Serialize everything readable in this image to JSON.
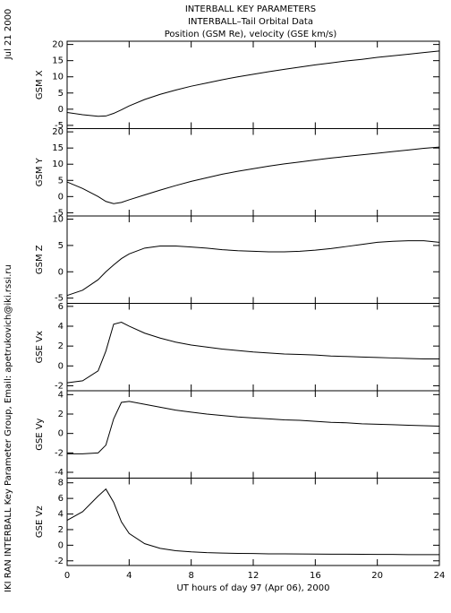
{
  "header": {
    "lines": [
      "INTERBALL KEY PARAMETERS",
      "INTERBALL–Tail Orbital Data",
      "Position (GSM Re), velocity (GSE km/s)"
    ]
  },
  "date_stamp": "Jul 21 2000",
  "credit": "IKI RAN INTERBALL Key Parameter Group, Email: apetrukovich@iki.rssi.ru",
  "chart_data": [
    {
      "type": "line",
      "ylabel": "GSM X",
      "xlim": [
        0,
        24
      ],
      "xticks": [
        0,
        4,
        8,
        12,
        16,
        20,
        24
      ],
      "xtick_labels": false,
      "ylim": [
        -6,
        21
      ],
      "yticks": [
        -5,
        0,
        5,
        10,
        15,
        20
      ],
      "x": [
        0,
        1,
        2,
        2.5,
        3,
        3.5,
        4,
        5,
        6,
        7,
        8,
        9,
        10,
        11,
        12,
        13,
        14,
        15,
        16,
        17,
        18,
        19,
        20,
        21,
        22,
        23,
        24
      ],
      "values": [
        -1,
        -1.7,
        -2.2,
        -2.1,
        -1.3,
        -0.2,
        1.0,
        3,
        4.6,
        5.9,
        7.1,
        8.1,
        9.1,
        10,
        10.8,
        11.6,
        12.3,
        13,
        13.7,
        14.3,
        14.9,
        15.4,
        16,
        16.5,
        17,
        17.5,
        18
      ]
    },
    {
      "type": "line",
      "ylabel": "GSM Y",
      "xlim": [
        0,
        24
      ],
      "xticks": [
        0,
        4,
        8,
        12,
        16,
        20,
        24
      ],
      "xtick_labels": false,
      "ylim": [
        -6,
        21
      ],
      "yticks": [
        -5,
        0,
        5,
        10,
        15,
        20
      ],
      "x": [
        0,
        1,
        2,
        2.5,
        3,
        3.5,
        4,
        5,
        6,
        7,
        8,
        9,
        10,
        11,
        12,
        13,
        14,
        15,
        16,
        17,
        18,
        19,
        20,
        21,
        22,
        23,
        24
      ],
      "values": [
        4.5,
        2.5,
        0,
        -1.5,
        -2.2,
        -1.8,
        -1,
        0.5,
        2,
        3.4,
        4.7,
        5.8,
        6.9,
        7.8,
        8.6,
        9.4,
        10.1,
        10.7,
        11.3,
        11.9,
        12.4,
        12.9,
        13.4,
        13.9,
        14.4,
        14.9,
        15.3
      ]
    },
    {
      "type": "line",
      "ylabel": "GSM Z",
      "xlim": [
        0,
        24
      ],
      "xticks": [
        0,
        4,
        8,
        12,
        16,
        20,
        24
      ],
      "xtick_labels": false,
      "ylim": [
        -6,
        10.6
      ],
      "yticks": [
        -5,
        0,
        5,
        10
      ],
      "x": [
        0,
        1,
        2,
        2.5,
        3,
        3.5,
        4,
        5,
        6,
        7,
        8,
        9,
        10,
        11,
        12,
        13,
        14,
        15,
        16,
        17,
        18,
        19,
        20,
        21,
        22,
        23,
        24
      ],
      "values": [
        -4.5,
        -3.5,
        -1.5,
        0,
        1.3,
        2.5,
        3.4,
        4.5,
        4.9,
        4.9,
        4.7,
        4.5,
        4.2,
        4,
        3.9,
        3.8,
        3.8,
        3.9,
        4.1,
        4.4,
        4.8,
        5.2,
        5.6,
        5.8,
        5.9,
        5.9,
        5.6
      ]
    },
    {
      "type": "line",
      "ylabel": "GSE Vx",
      "xlim": [
        0,
        24
      ],
      "xticks": [
        0,
        4,
        8,
        12,
        16,
        20,
        24
      ],
      "xtick_labels": false,
      "ylim": [
        -2.5,
        6.3
      ],
      "yticks": [
        -2,
        0,
        2,
        4,
        6
      ],
      "x": [
        0,
        1,
        2,
        2.5,
        3,
        3.5,
        4,
        5,
        6,
        7,
        8,
        9,
        10,
        11,
        12,
        13,
        14,
        15,
        16,
        17,
        18,
        19,
        20,
        21,
        22,
        23,
        24
      ],
      "values": [
        -1.7,
        -1.5,
        -0.5,
        1.5,
        4.2,
        4.4,
        4,
        3.3,
        2.8,
        2.4,
        2.1,
        1.9,
        1.7,
        1.55,
        1.4,
        1.3,
        1.2,
        1.15,
        1.1,
        1.0,
        0.95,
        0.9,
        0.85,
        0.8,
        0.75,
        0.7,
        0.7
      ]
    },
    {
      "type": "line",
      "ylabel": "GSE Vy",
      "xlim": [
        0,
        24
      ],
      "xticks": [
        0,
        4,
        8,
        12,
        16,
        20,
        24
      ],
      "xtick_labels": false,
      "ylim": [
        -4.6,
        4.4
      ],
      "yticks": [
        -4,
        -2,
        0,
        2,
        4
      ],
      "x": [
        0,
        1,
        2,
        2.5,
        3,
        3.5,
        4,
        5,
        6,
        7,
        8,
        9,
        10,
        11,
        12,
        13,
        14,
        15,
        16,
        17,
        18,
        19,
        20,
        21,
        22,
        23,
        24
      ],
      "values": [
        -2.1,
        -2.1,
        -2,
        -1.2,
        1.5,
        3.2,
        3.3,
        3,
        2.7,
        2.4,
        2.2,
        2.0,
        1.85,
        1.7,
        1.6,
        1.5,
        1.4,
        1.35,
        1.25,
        1.15,
        1.1,
        1.0,
        0.95,
        0.9,
        0.85,
        0.8,
        0.75
      ]
    },
    {
      "type": "line",
      "ylabel": "GSE Vz",
      "xlabel": "UT hours of day  97 (Apr 06), 2000",
      "xlim": [
        0,
        24
      ],
      "xticks": [
        0,
        4,
        8,
        12,
        16,
        20,
        24
      ],
      "xtick_labels": true,
      "ylim": [
        -2.6,
        8.6
      ],
      "yticks": [
        -2,
        0,
        2,
        4,
        6,
        8
      ],
      "x": [
        0,
        1,
        2,
        2.5,
        3,
        3.5,
        4,
        5,
        6,
        7,
        8,
        9,
        10,
        11,
        12,
        13,
        14,
        15,
        16,
        17,
        18,
        19,
        20,
        21,
        22,
        23,
        24
      ],
      "values": [
        3.2,
        4.3,
        6.3,
        7.2,
        5.5,
        3,
        1.5,
        0.2,
        -0.4,
        -0.7,
        -0.85,
        -0.95,
        -1.0,
        -1.05,
        -1.07,
        -1.1,
        -1.1,
        -1.12,
        -1.13,
        -1.15,
        -1.15,
        -1.17,
        -1.18,
        -1.18,
        -1.2,
        -1.2,
        -1.2
      ]
    }
  ]
}
